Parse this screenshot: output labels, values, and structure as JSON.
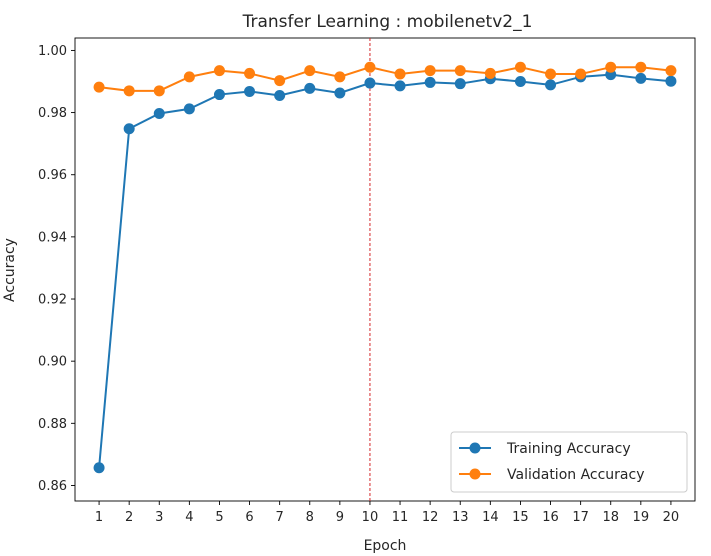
{
  "chart_data": {
    "type": "line",
    "title": "Transfer Learning : mobilenetv2_1",
    "xlabel": "Epoch",
    "ylabel": "Accuracy",
    "x": [
      1,
      2,
      3,
      4,
      5,
      6,
      7,
      8,
      9,
      10,
      11,
      12,
      13,
      14,
      15,
      16,
      17,
      18,
      19,
      20
    ],
    "xlim": [
      0.2,
      20.8
    ],
    "ylim": [
      0.855,
      1.004
    ],
    "yticks": [
      0.86,
      0.88,
      0.9,
      0.92,
      0.94,
      0.96,
      0.98,
      1.0
    ],
    "ytick_labels": [
      "0.86",
      "0.88",
      "0.90",
      "0.92",
      "0.94",
      "0.96",
      "0.98",
      "1.00"
    ],
    "vline": {
      "x": 10,
      "color": "#d62728",
      "style": "dashed"
    },
    "legend_position": "lower-right",
    "grid": false,
    "series": [
      {
        "name": "Training Accuracy",
        "color": "#1f77b4",
        "values": [
          0.8657,
          0.9748,
          0.9797,
          0.9812,
          0.9858,
          0.9868,
          0.9855,
          0.9878,
          0.9863,
          0.9895,
          0.9886,
          0.9897,
          0.9893,
          0.9909,
          0.99,
          0.9889,
          0.9915,
          0.9922,
          0.991,
          0.9901
        ]
      },
      {
        "name": "Validation Accuracy",
        "color": "#ff7f0e",
        "values": [
          0.9882,
          0.987,
          0.987,
          0.9915,
          0.9935,
          0.9926,
          0.9903,
          0.9935,
          0.9915,
          0.9946,
          0.9924,
          0.9935,
          0.9935,
          0.9926,
          0.9946,
          0.9924,
          0.9924,
          0.9946,
          0.9946,
          0.9935
        ]
      }
    ]
  }
}
